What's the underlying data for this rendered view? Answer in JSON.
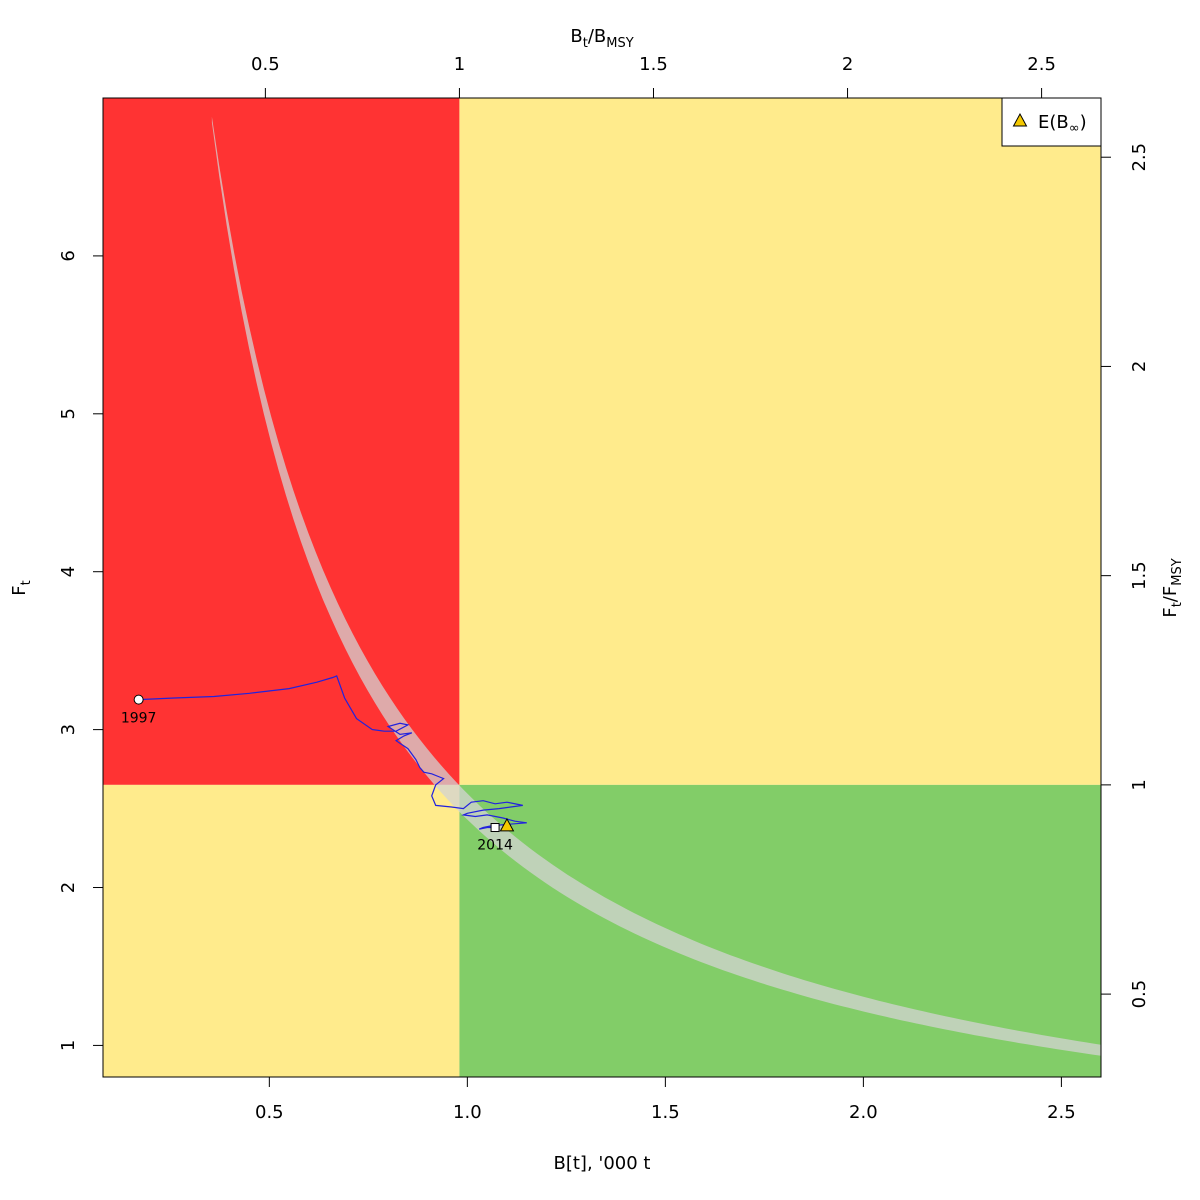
{
  "chart_data": {
    "type": "scatter",
    "title": "",
    "xlabel": "B[t], '000 t",
    "ylabel": "F",
    "ylabel_sub": "t",
    "top_axis_label": {
      "main": "B",
      "sub1": "t",
      "sep": "/B",
      "sub2": "MSY"
    },
    "right_axis_label": {
      "main": "F",
      "sub1": "t",
      "sep": "/F",
      "sub2": "MSY"
    },
    "xlim": [
      0.08,
      2.6
    ],
    "ylim": [
      0.8,
      7.0
    ],
    "x_ticks": [
      0.5,
      1.0,
      1.5,
      2.0,
      2.5
    ],
    "x_tick_labels": [
      "0.5",
      "1.0",
      "1.5",
      "2.0",
      "2.5"
    ],
    "y_ticks": [
      1,
      2,
      3,
      4,
      5,
      6
    ],
    "y_tick_labels": [
      "1",
      "2",
      "3",
      "4",
      "5",
      "6"
    ],
    "top_ticks": [
      0.5,
      1,
      1.5,
      2,
      2.5
    ],
    "top_tick_labels": [
      "0.5",
      "1",
      "1.5",
      "2",
      "2.5"
    ],
    "right_ticks": [
      0.5,
      1,
      1.5,
      2,
      2.5
    ],
    "right_tick_labels": [
      "0.5",
      "1",
      "1.5",
      "2",
      "2.5"
    ],
    "bmsy": 0.98,
    "fmsy": 2.65,
    "zone_colors": {
      "red": "#ff3333",
      "yellow": "#ffeb8c",
      "green": "#82cd68"
    },
    "band_color": "#d3d3d3",
    "trajectory_color": "#2222dd",
    "trajectory": {
      "x": [
        0.17,
        0.26,
        0.36,
        0.45,
        0.55,
        0.62,
        0.66,
        0.67,
        0.69,
        0.72,
        0.76,
        0.79,
        0.82,
        0.85,
        0.83,
        0.8,
        0.83,
        0.86,
        0.84,
        0.82,
        0.85,
        0.87,
        0.88,
        0.89,
        0.91,
        0.93,
        0.94,
        0.92,
        0.91,
        0.92,
        0.96,
        0.99,
        1.01,
        1.04,
        1.07,
        1.1,
        1.14,
        1.08,
        1.04,
        1.0,
        0.99,
        1.02,
        1.05,
        1.09,
        1.12,
        1.15,
        1.1,
        1.06,
        1.04,
        1.03,
        1.05,
        1.07
      ],
      "y": [
        3.19,
        3.2,
        3.21,
        3.23,
        3.26,
        3.3,
        3.33,
        3.34,
        3.2,
        3.07,
        3.0,
        2.99,
        2.99,
        3.03,
        3.04,
        3.02,
        2.97,
        2.98,
        2.96,
        2.93,
        2.88,
        2.81,
        2.76,
        2.73,
        2.72,
        2.7,
        2.69,
        2.65,
        2.58,
        2.52,
        2.51,
        2.5,
        2.54,
        2.55,
        2.53,
        2.54,
        2.52,
        2.5,
        2.49,
        2.47,
        2.46,
        2.45,
        2.46,
        2.44,
        2.42,
        2.41,
        2.4,
        2.39,
        2.38,
        2.37,
        2.38,
        2.38
      ]
    },
    "start_point": {
      "x": 0.17,
      "y": 3.19,
      "label": "1997"
    },
    "end_point": {
      "x": 1.07,
      "y": 2.38,
      "label": "2014"
    },
    "expected_point": {
      "x": 1.1,
      "y": 2.39
    },
    "legend": {
      "label_main": "E(B",
      "label_sub": "∞",
      "label_end": ")",
      "position": "top-right",
      "marker_color": "#f4c800"
    }
  }
}
